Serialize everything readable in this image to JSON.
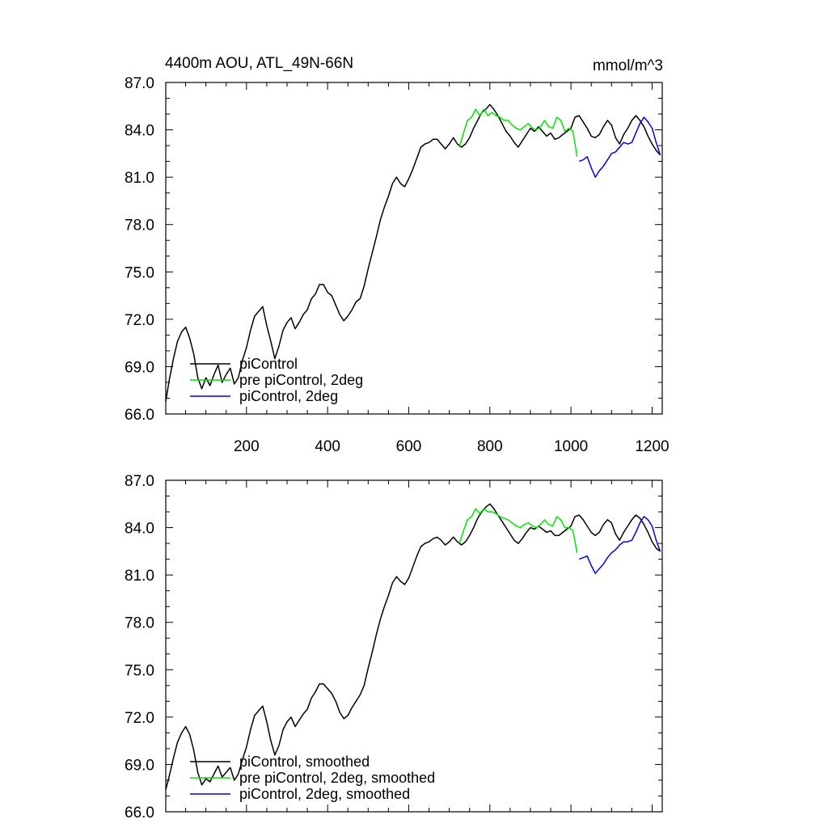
{
  "chart_data": [
    {
      "type": "line",
      "title_left": "4400m AOU, ATL_49N-66N",
      "title_right": "mmol/m^3",
      "xlim": [
        1,
        1225
      ],
      "ylim": [
        66,
        87
      ],
      "x_ticks": [
        200,
        400,
        600,
        800,
        1000,
        1200
      ],
      "x_tick_labels": [
        "200",
        "400",
        "600",
        "800",
        "1000",
        "1200"
      ],
      "y_ticks": [
        66,
        69,
        72,
        75,
        78,
        81,
        84,
        87
      ],
      "y_tick_labels": [
        "66.0",
        "69.0",
        "72.0",
        "75.0",
        "78.0",
        "81.0",
        "84.0",
        "87.0"
      ],
      "legend_position": "bottom-left",
      "series": [
        {
          "name": "piControl",
          "color": "#000000",
          "x": [
            1,
            10,
            20,
            30,
            40,
            50,
            60,
            70,
            80,
            90,
            100,
            110,
            120,
            130,
            140,
            150,
            160,
            170,
            180,
            190,
            200,
            210,
            220,
            230,
            240,
            250,
            260,
            270,
            280,
            290,
            300,
            310,
            320,
            330,
            340,
            350,
            360,
            370,
            380,
            390,
            400,
            410,
            420,
            430,
            440,
            450,
            460,
            470,
            480,
            490,
            500,
            510,
            520,
            530,
            540,
            550,
            560,
            570,
            580,
            590,
            600,
            610,
            620,
            630,
            640,
            650,
            660,
            670,
            680,
            690,
            700,
            710,
            720,
            730,
            740,
            750,
            760,
            770,
            780,
            790,
            800,
            810,
            820,
            830,
            840,
            850,
            860,
            870,
            880,
            890,
            900,
            910,
            920,
            930,
            940,
            950,
            960,
            970,
            980,
            990,
            1000,
            1010,
            1020,
            1030,
            1040,
            1050,
            1060,
            1070,
            1080,
            1090,
            1100,
            1110,
            1120,
            1130,
            1140,
            1150,
            1160,
            1170,
            1180,
            1190,
            1200,
            1210,
            1220
          ],
          "values": [
            66.8,
            68.2,
            69.5,
            70.6,
            71.2,
            71.5,
            70.8,
            69.8,
            68.3,
            67.6,
            68.3,
            67.8,
            68.5,
            69.1,
            68.0,
            68.5,
            68.9,
            67.9,
            68.3,
            69.4,
            70.2,
            71.3,
            72.2,
            72.5,
            72.8,
            71.6,
            70.6,
            69.5,
            70.3,
            71.3,
            71.8,
            72.1,
            71.4,
            71.8,
            72.3,
            72.6,
            73.3,
            73.6,
            74.2,
            74.2,
            73.7,
            73.5,
            72.9,
            72.3,
            71.9,
            72.2,
            72.6,
            73.1,
            73.3,
            74.1,
            75.2,
            76.2,
            77.2,
            78.3,
            79.1,
            79.8,
            80.6,
            81.0,
            80.6,
            80.4,
            80.9,
            81.5,
            82.2,
            82.9,
            83.1,
            83.2,
            83.4,
            83.4,
            83.1,
            82.8,
            83.1,
            83.5,
            83.1,
            82.9,
            83.1,
            83.5,
            84.1,
            84.6,
            85.1,
            85.3,
            85.6,
            85.3,
            84.9,
            84.4,
            83.9,
            83.6,
            83.2,
            82.9,
            83.3,
            83.7,
            84.1,
            83.9,
            84.2,
            83.9,
            83.6,
            83.8,
            83.4,
            83.5,
            83.7,
            83.9,
            84.1,
            84.8,
            84.9,
            84.5,
            84.1,
            83.6,
            83.5,
            83.7,
            84.2,
            84.6,
            84.3,
            83.5,
            83.1,
            83.7,
            84.1,
            84.6,
            84.9,
            84.6,
            84.2,
            83.6,
            83.1,
            82.7,
            82.4
          ]
        },
        {
          "name": "pre piControl, 2deg",
          "color": "#00e600",
          "x": [
            725,
            735,
            745,
            755,
            765,
            775,
            785,
            795,
            805,
            815,
            825,
            835,
            845,
            855,
            865,
            875,
            885,
            895,
            905,
            915,
            925,
            935,
            945,
            955,
            965,
            975,
            985,
            995,
            1005,
            1015
          ],
          "values": [
            82.9,
            83.8,
            84.6,
            84.8,
            85.3,
            84.9,
            85.3,
            84.9,
            85.1,
            84.9,
            84.8,
            84.6,
            84.6,
            84.3,
            84.1,
            84.0,
            84.2,
            84.4,
            84.1,
            84.0,
            84.2,
            84.6,
            84.2,
            84.1,
            84.8,
            84.6,
            83.9,
            84.1,
            83.9,
            82.3
          ]
        },
        {
          "name": "piControl, 2deg",
          "color": "#0000e6",
          "x": [
            1020,
            1030,
            1040,
            1050,
            1060,
            1070,
            1080,
            1090,
            1100,
            1110,
            1120,
            1130,
            1140,
            1150,
            1160,
            1170,
            1180,
            1190,
            1200,
            1210,
            1220
          ],
          "values": [
            82.0,
            82.1,
            82.3,
            81.6,
            81.0,
            81.4,
            81.7,
            82.1,
            82.5,
            82.6,
            82.9,
            83.2,
            83.1,
            83.2,
            83.8,
            84.4,
            84.8,
            84.5,
            84.1,
            83.2,
            82.4
          ]
        }
      ]
    },
    {
      "type": "line",
      "xlim": [
        1,
        1225
      ],
      "ylim": [
        66,
        87
      ],
      "y_ticks": [
        66,
        69,
        72,
        75,
        78,
        81,
        84,
        87
      ],
      "y_tick_labels": [
        "66.0",
        "69.0",
        "72.0",
        "75.0",
        "78.0",
        "81.0",
        "84.0",
        "87.0"
      ],
      "legend_position": "bottom-left",
      "series": [
        {
          "name": "piControl, smoothed",
          "color": "#000000",
          "x": [
            1,
            10,
            20,
            30,
            40,
            50,
            60,
            70,
            80,
            90,
            100,
            110,
            120,
            130,
            140,
            150,
            160,
            170,
            180,
            190,
            200,
            210,
            220,
            230,
            240,
            250,
            260,
            270,
            280,
            290,
            300,
            310,
            320,
            330,
            340,
            350,
            360,
            370,
            380,
            390,
            400,
            410,
            420,
            430,
            440,
            450,
            460,
            470,
            480,
            490,
            500,
            510,
            520,
            530,
            540,
            550,
            560,
            570,
            580,
            590,
            600,
            610,
            620,
            630,
            640,
            650,
            660,
            670,
            680,
            690,
            700,
            710,
            720,
            730,
            740,
            750,
            760,
            770,
            780,
            790,
            800,
            810,
            820,
            830,
            840,
            850,
            860,
            870,
            880,
            890,
            900,
            910,
            920,
            930,
            940,
            950,
            960,
            970,
            980,
            990,
            1000,
            1010,
            1020,
            1030,
            1040,
            1050,
            1060,
            1070,
            1080,
            1090,
            1100,
            1110,
            1120,
            1130,
            1140,
            1150,
            1160,
            1170,
            1180,
            1190,
            1200,
            1210,
            1220
          ],
          "values": [
            67.4,
            68.3,
            69.4,
            70.4,
            71.0,
            71.4,
            70.9,
            69.9,
            68.5,
            67.7,
            68.1,
            67.9,
            68.4,
            68.9,
            68.2,
            68.5,
            68.8,
            68.0,
            68.4,
            69.3,
            70.1,
            71.2,
            72.1,
            72.4,
            72.7,
            71.7,
            70.5,
            69.6,
            70.2,
            71.2,
            71.7,
            72.0,
            71.4,
            71.8,
            72.2,
            72.5,
            73.2,
            73.6,
            74.1,
            74.1,
            73.8,
            73.5,
            73.0,
            72.3,
            71.9,
            72.1,
            72.6,
            73.0,
            73.4,
            74.0,
            75.1,
            76.1,
            77.2,
            78.2,
            79.0,
            79.7,
            80.5,
            80.9,
            80.6,
            80.4,
            80.8,
            81.5,
            82.2,
            82.8,
            83.0,
            83.1,
            83.3,
            83.4,
            83.2,
            82.9,
            83.1,
            83.4,
            83.1,
            82.9,
            83.1,
            83.5,
            84.0,
            84.6,
            85.0,
            85.3,
            85.5,
            85.2,
            84.8,
            84.4,
            84.0,
            83.6,
            83.2,
            83.0,
            83.3,
            83.7,
            84.0,
            83.9,
            84.1,
            83.9,
            83.7,
            83.8,
            83.5,
            83.5,
            83.7,
            83.9,
            84.1,
            84.7,
            84.8,
            84.5,
            84.1,
            83.7,
            83.5,
            83.7,
            84.2,
            84.5,
            84.3,
            83.6,
            83.2,
            83.7,
            84.1,
            84.5,
            84.8,
            84.6,
            84.2,
            83.7,
            83.1,
            82.7,
            82.5
          ]
        },
        {
          "name": "pre piControl, 2deg, smoothed",
          "color": "#00e600",
          "x": [
            725,
            735,
            745,
            755,
            765,
            775,
            785,
            795,
            805,
            815,
            825,
            835,
            845,
            855,
            865,
            875,
            885,
            895,
            905,
            915,
            925,
            935,
            945,
            955,
            965,
            975,
            985,
            995,
            1005,
            1015
          ],
          "values": [
            83.0,
            83.8,
            84.5,
            84.7,
            85.2,
            84.9,
            85.2,
            85.0,
            85.0,
            84.9,
            84.7,
            84.6,
            84.5,
            84.3,
            84.1,
            84.0,
            84.2,
            84.3,
            84.1,
            84.0,
            84.2,
            84.5,
            84.2,
            84.1,
            84.7,
            84.5,
            84.0,
            84.0,
            83.8,
            82.4
          ]
        },
        {
          "name": "piControl, 2deg, smoothed",
          "color": "#0000e6",
          "x": [
            1020,
            1030,
            1040,
            1050,
            1060,
            1070,
            1080,
            1090,
            1100,
            1110,
            1120,
            1130,
            1140,
            1150,
            1160,
            1170,
            1180,
            1190,
            1200,
            1210,
            1220
          ],
          "values": [
            82.0,
            82.1,
            82.2,
            81.6,
            81.1,
            81.4,
            81.7,
            82.1,
            82.4,
            82.6,
            82.9,
            83.1,
            83.1,
            83.2,
            83.7,
            84.3,
            84.7,
            84.5,
            84.1,
            83.2,
            82.5
          ]
        }
      ]
    }
  ]
}
